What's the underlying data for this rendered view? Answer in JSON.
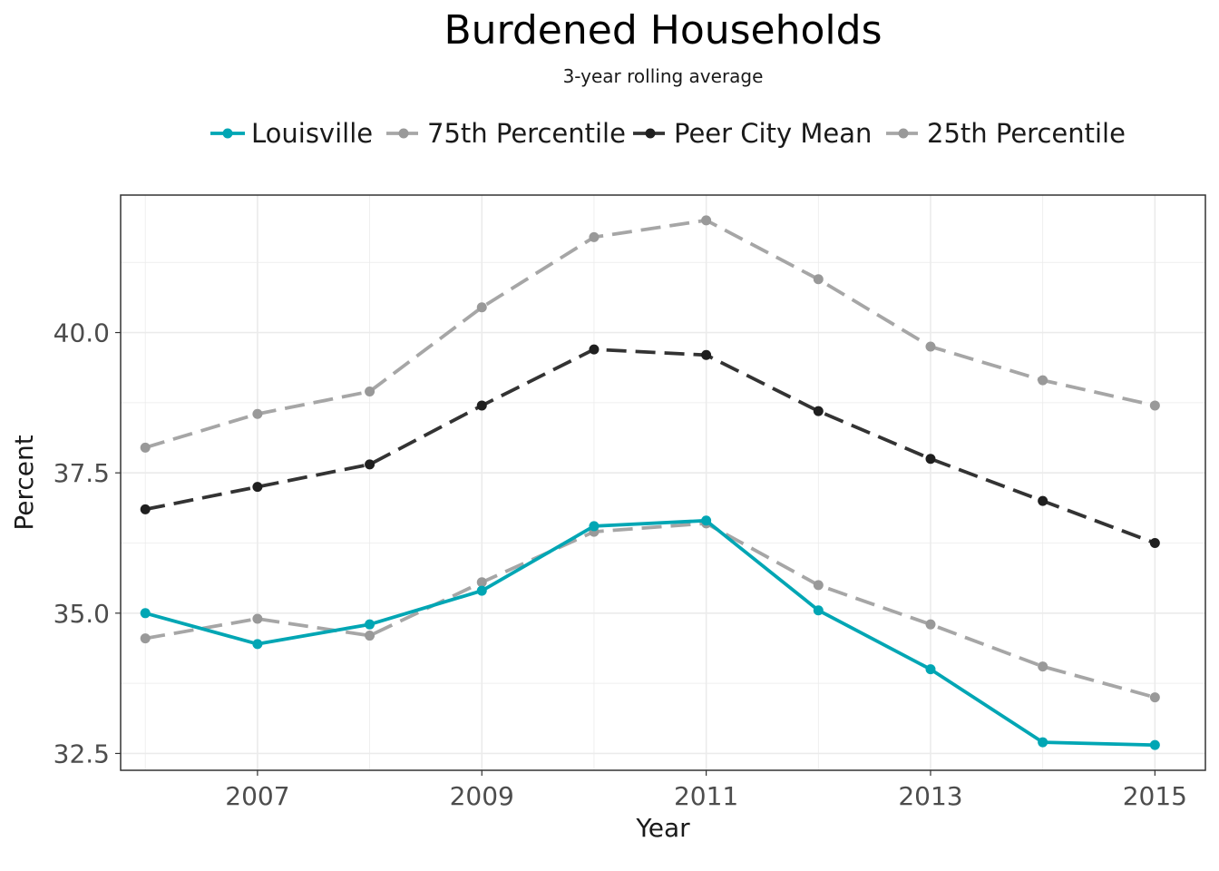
{
  "chart_data": {
    "type": "line",
    "title": "Burdened Households",
    "subtitle": "3-year rolling average",
    "xlabel": "Year",
    "ylabel": "Percent",
    "x": [
      2006,
      2007,
      2008,
      2009,
      2010,
      2011,
      2012,
      2013,
      2014,
      2015
    ],
    "xlim": [
      2005.78,
      2015.45
    ],
    "ylim": [
      32.2,
      42.45
    ],
    "x_ticks": [
      "2007",
      "2009",
      "2011",
      "2013",
      "2015"
    ],
    "y_ticks": [
      "32.5",
      "35.0",
      "37.5",
      "40.0"
    ],
    "grid": true,
    "legend_position": "top",
    "series": [
      {
        "name": "Louisville",
        "color": "#00a6b4",
        "dashed": false,
        "values": [
          35.0,
          34.45,
          34.8,
          35.4,
          36.55,
          36.65,
          35.05,
          34.0,
          32.7,
          32.65
        ]
      },
      {
        "name": "75th Percentile",
        "color": "#a6a6a6",
        "dashed": true,
        "values": [
          37.95,
          38.55,
          38.95,
          40.45,
          41.7,
          42.0,
          40.95,
          39.75,
          39.15,
          38.7
        ]
      },
      {
        "name": "Peer City Mean",
        "color": "#333333",
        "dashed": true,
        "values": [
          36.85,
          37.25,
          37.65,
          38.7,
          39.7,
          39.6,
          38.6,
          37.75,
          37.0,
          36.25
        ]
      },
      {
        "name": "25th Percentile",
        "color": "#a6a6a6",
        "dashed": true,
        "values": [
          34.55,
          34.9,
          34.6,
          35.55,
          36.45,
          36.6,
          35.5,
          34.8,
          34.05,
          33.5
        ]
      }
    ]
  }
}
